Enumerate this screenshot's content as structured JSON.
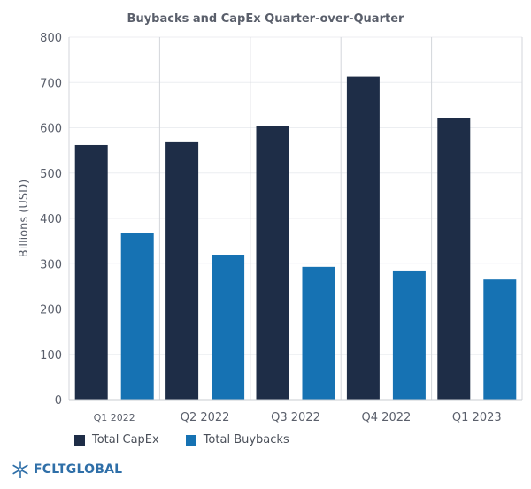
{
  "chart_data": {
    "type": "bar",
    "title": "Buybacks and CapEx Quarter-over-Quarter",
    "xlabel": "",
    "ylabel": "Billions (USD)",
    "ylim": [
      0,
      800
    ],
    "yticks": [
      0,
      100,
      200,
      300,
      400,
      500,
      600,
      700,
      800
    ],
    "categories": [
      "Q1 2022",
      "Q2 2022",
      "Q3 2022",
      "Q4 2022",
      "Q1 2023"
    ],
    "series": [
      {
        "name": "Total CapEx",
        "color": "#1e2d47",
        "values": [
          562,
          568,
          604,
          713,
          621
        ]
      },
      {
        "name": "Total Buybacks",
        "color": "#1672b3",
        "values": [
          368,
          320,
          293,
          285,
          265
        ]
      }
    ],
    "legend": "bottom-left",
    "grid": true
  },
  "logo": {
    "text": "FCLTGLOBAL",
    "icon": "snowflake-icon",
    "color": "#2f6fa8"
  }
}
